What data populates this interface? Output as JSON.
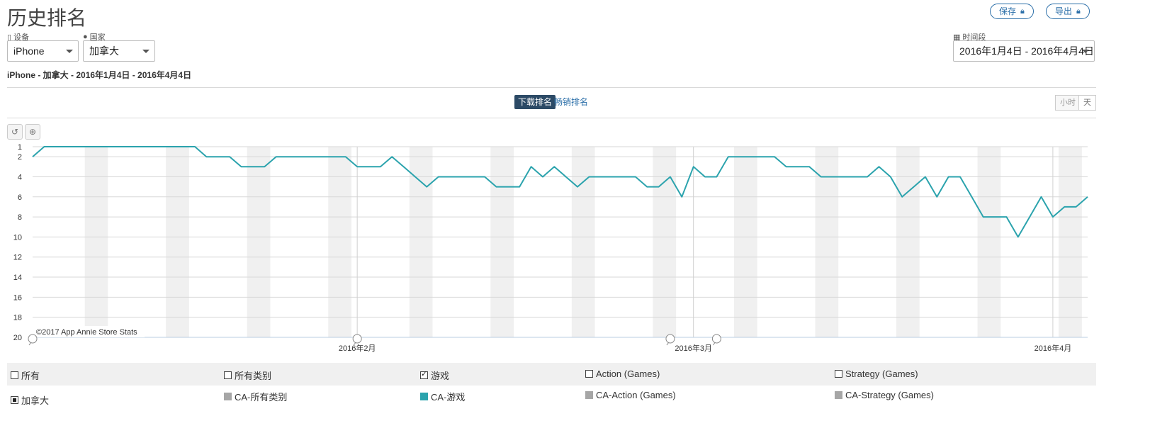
{
  "page": {
    "title": "历史排名",
    "save_label": "保存",
    "export_label": "导出"
  },
  "filters": {
    "device_label": "设备",
    "device_value": "iPhone",
    "country_label": "国家",
    "country_value": "加拿大",
    "period_label": "时间段",
    "period_value": "2016年1月4日 - 2016年4月4日"
  },
  "summary": {
    "device": "iPhone",
    "rest": " - 加拿大 - 2016年1月4日 - 2016年4月4日"
  },
  "tabs": {
    "download": "下载排名",
    "grossing": "畅销排名"
  },
  "granularity": {
    "hour": "小时",
    "day": "天"
  },
  "colors": {
    "series": "#2ba3ad",
    "weekend": "#f0f0f0",
    "grid": "#d7d7d7",
    "accent": "#2a6ea8",
    "grey_swatch": "#a6a6a6"
  },
  "chart_data": {
    "type": "line",
    "x_start_date": "2016-01-04",
    "x_end_date": "2016-04-04",
    "ylim": [
      1,
      20
    ],
    "y_inverted": true,
    "y_ticks": [
      "1",
      "2",
      "4",
      "6",
      "8",
      "10",
      "12",
      "14",
      "16",
      "18",
      "20"
    ],
    "x_ticks": [
      {
        "date": "2016-02-01",
        "label": "2016年2月"
      },
      {
        "date": "2016-03-01",
        "label": "2016年3月"
      },
      {
        "date": "2016-04-01",
        "label": "2016年4月"
      }
    ],
    "annotation_dates": [
      "2016-01-04",
      "2016-02-01",
      "2016-02-28",
      "2016-03-03"
    ],
    "credit": "©2017 App Annie Store Stats",
    "series": [
      {
        "name": "CA-游戏",
        "values": [
          2,
          1,
          1,
          1,
          1,
          1,
          1,
          1,
          1,
          1,
          1,
          1,
          1,
          1,
          1,
          2,
          2,
          2,
          3,
          3,
          3,
          2,
          2,
          2,
          2,
          2,
          2,
          2,
          3,
          3,
          3,
          2,
          3,
          4,
          5,
          4,
          4,
          4,
          4,
          4,
          5,
          5,
          5,
          3,
          4,
          3,
          4,
          5,
          4,
          4,
          4,
          4,
          4,
          5,
          5,
          4,
          6,
          3,
          4,
          4,
          2,
          2,
          2,
          2,
          2,
          3,
          3,
          3,
          4,
          4,
          4,
          4,
          4,
          3,
          4,
          6,
          5,
          4,
          6,
          4,
          4,
          6,
          8,
          8,
          8,
          10,
          8,
          6,
          8,
          7,
          7,
          6
        ]
      }
    ]
  },
  "legend": {
    "row1": [
      {
        "label": "所有",
        "checked": false
      },
      {
        "label": "所有类别",
        "checked": false
      },
      {
        "label": "游戏",
        "checked": true
      },
      {
        "label": "Action (Games)",
        "checked": false
      },
      {
        "label": "Strategy (Games)",
        "checked": false
      }
    ],
    "row2": [
      {
        "label": "加拿大"
      },
      {
        "label": "CA-所有类别"
      },
      {
        "label": "CA-游戏"
      },
      {
        "label": "CA-Action (Games)"
      },
      {
        "label": "CA-Strategy (Games)"
      }
    ]
  }
}
